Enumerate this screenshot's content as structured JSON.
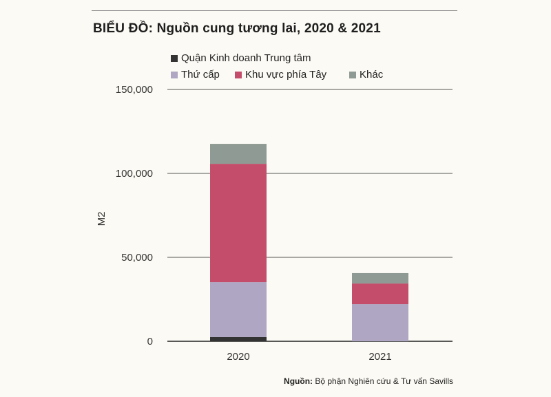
{
  "chart_data": {
    "type": "bar",
    "stacked": true,
    "title": "BIỂU ĐỒ: Nguồn cung tương lai, 2020 & 2021",
    "xlabel": "",
    "ylabel": "M2",
    "ylim": [
      0,
      150000
    ],
    "yticks": [
      0,
      50000,
      100000,
      150000
    ],
    "ytick_labels": [
      "0",
      "50,000",
      "100,000",
      "150,000"
    ],
    "grid": true,
    "legend_position": "top",
    "categories": [
      "2020",
      "2021"
    ],
    "series": [
      {
        "name": "Quận Kinh doanh Trung tâm",
        "color": "#333333",
        "values": [
          2500,
          0
        ]
      },
      {
        "name": "Thứ cấp",
        "color": "#aea6c2",
        "values": [
          32700,
          22100
        ]
      },
      {
        "name": "Khu vực phía Tây",
        "color": "#c44d6b",
        "values": [
          70500,
          12300
        ]
      },
      {
        "name": "Khác",
        "color": "#8f9a94",
        "values": [
          11900,
          6200
        ]
      }
    ]
  },
  "source": {
    "label": "Nguồn:",
    "text": "Bộ phận Nghiên cứu & Tư vấn Savills"
  }
}
